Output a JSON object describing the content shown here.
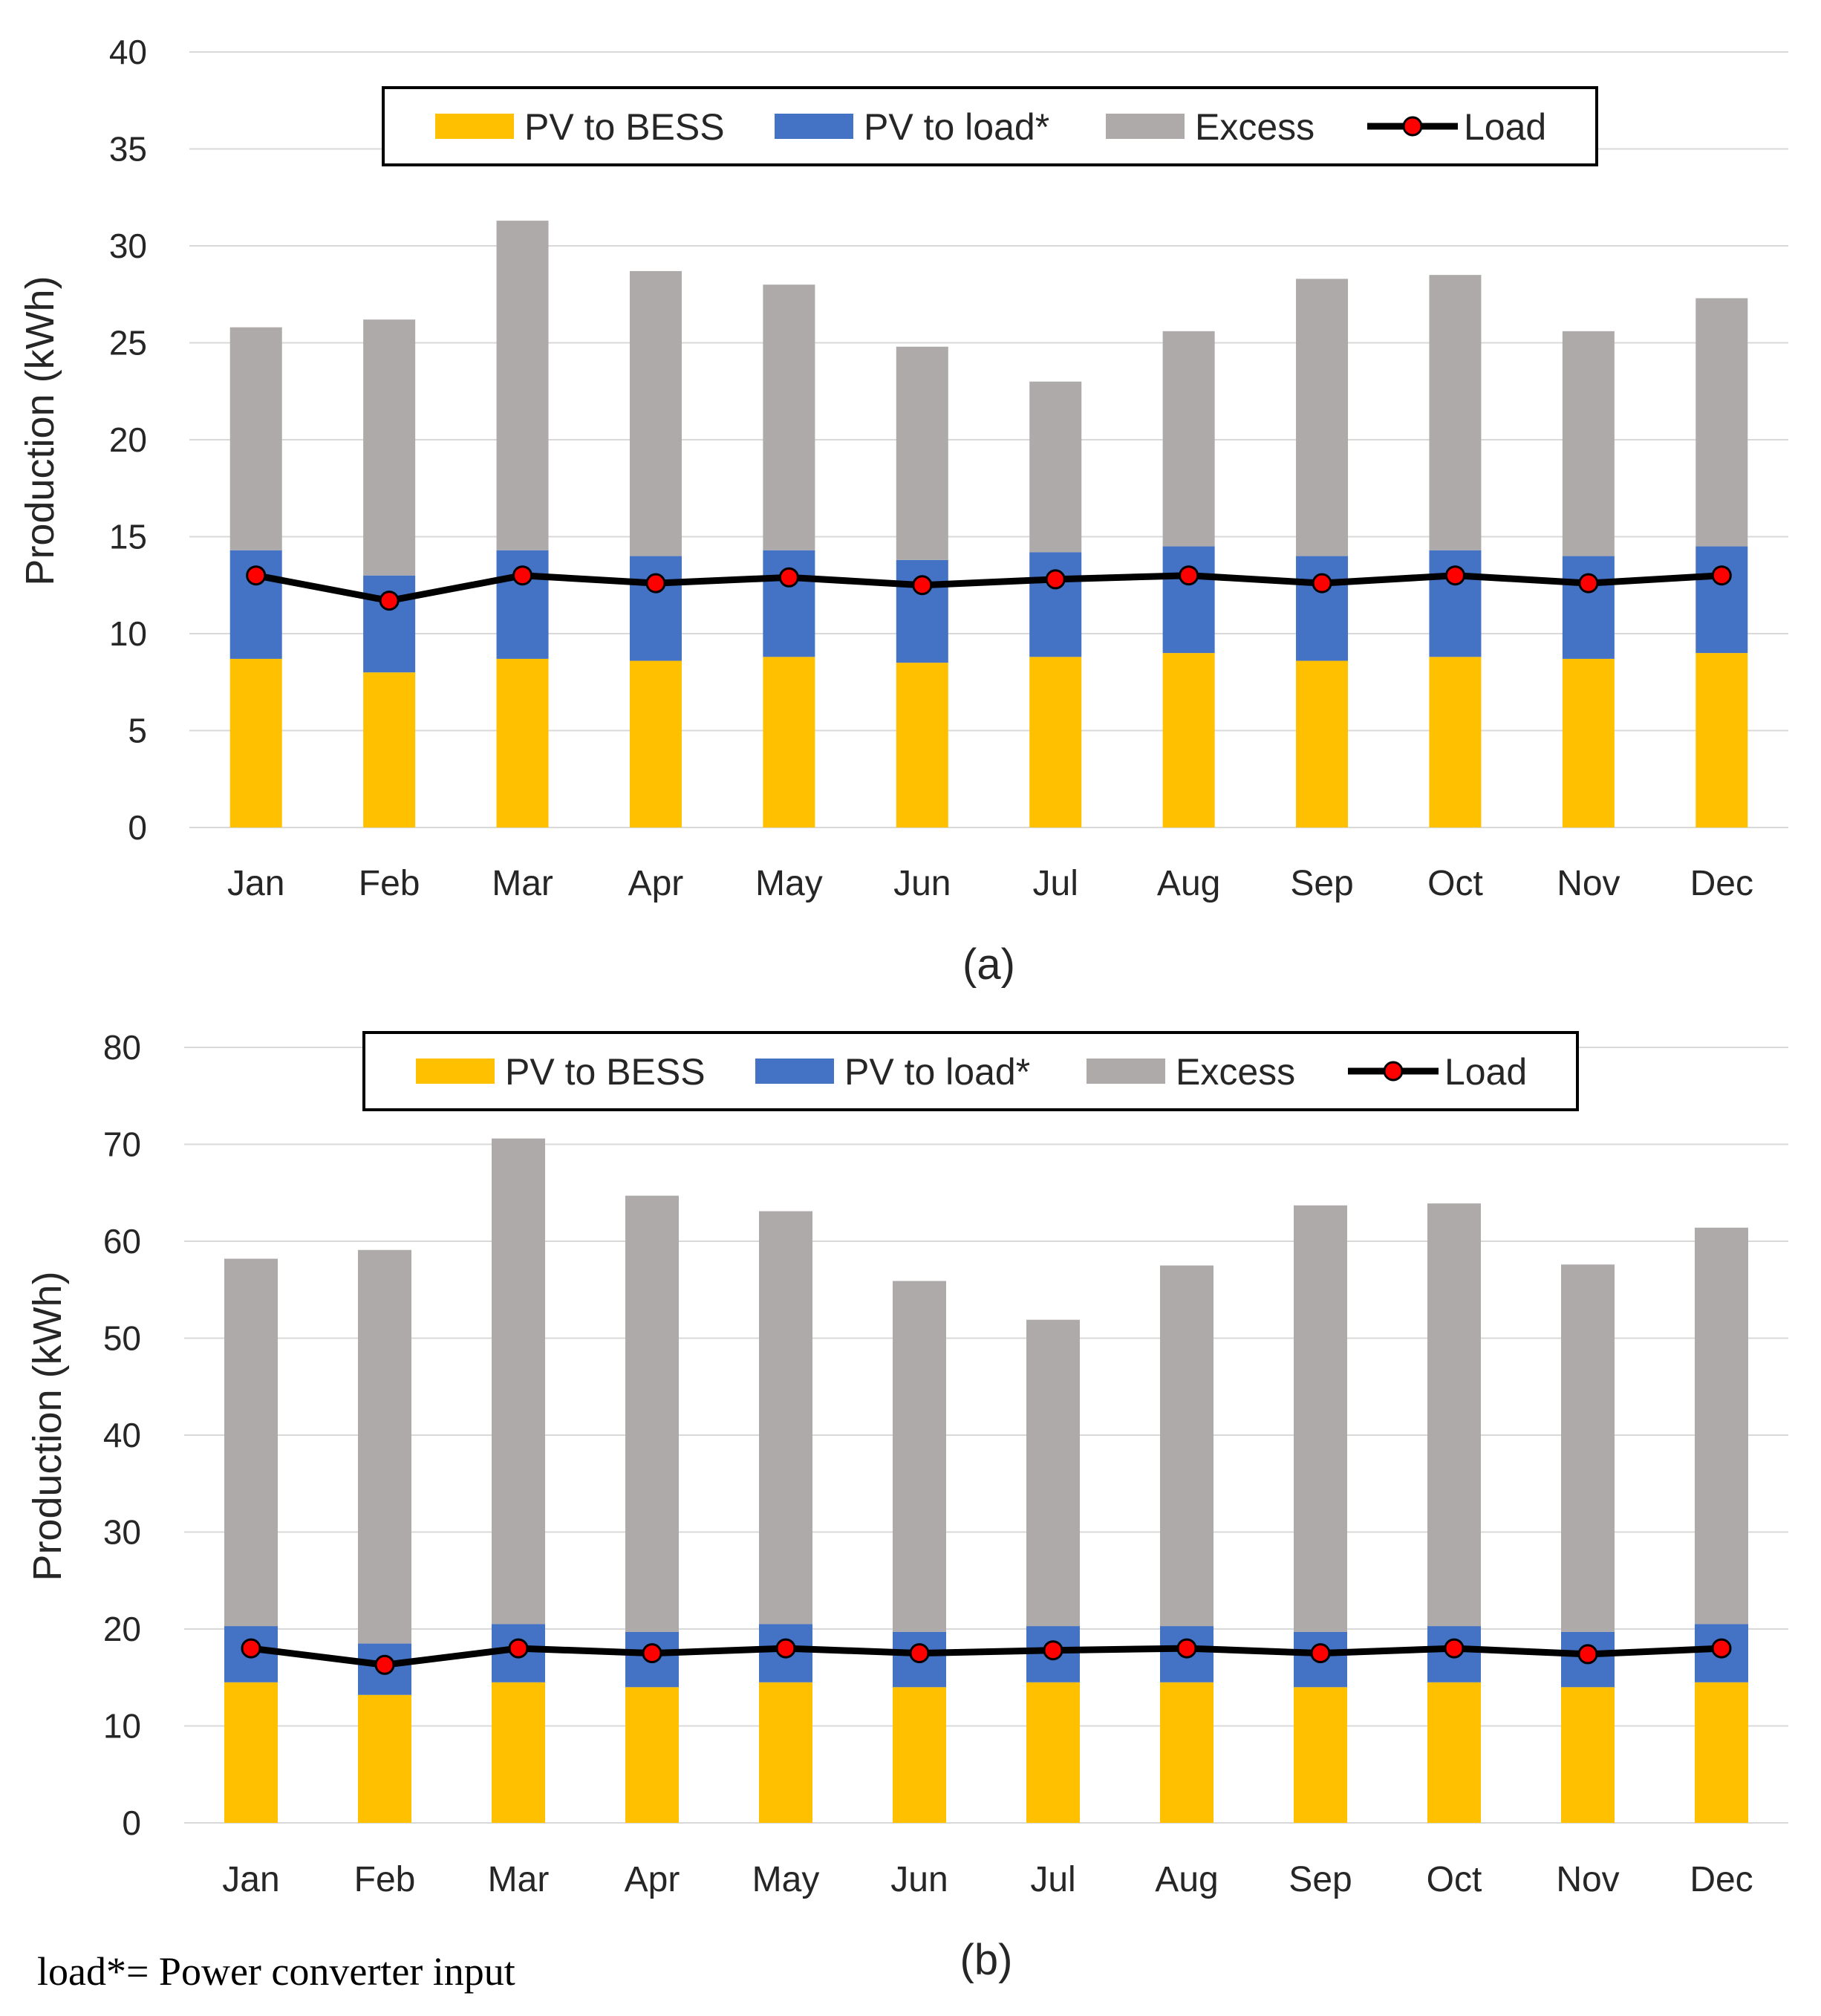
{
  "colors": {
    "pv_to_bess": "#FFC000",
    "pv_to_load": "#4472C4",
    "excess": "#AEAAAA",
    "load_line": "#000000",
    "load_marker": "#FF0000"
  },
  "footnote": "load*= Power converter input",
  "chart_data": [
    {
      "type": "bar",
      "stacked": true,
      "panel_label": "(a)",
      "categories": [
        "Jan",
        "Feb",
        "Mar",
        "Apr",
        "May",
        "Jun",
        "Jul",
        "Aug",
        "Sep",
        "Oct",
        "Nov",
        "Dec"
      ],
      "ylabel": "Production (kWh)",
      "xlabel": "",
      "ylim": [
        0,
        40
      ],
      "yticks": [
        0,
        5,
        10,
        15,
        20,
        25,
        30,
        35,
        40
      ],
      "grid": true,
      "legend_position": "top-center",
      "legend": [
        "PV to BESS",
        "PV to load*",
        "Excess",
        "Load"
      ],
      "series": [
        {
          "name": "PV to BESS",
          "color_key": "pv_to_bess",
          "values": [
            8.7,
            8.0,
            8.7,
            8.6,
            8.8,
            8.5,
            8.8,
            9.0,
            8.6,
            8.8,
            8.7,
            9.0
          ]
        },
        {
          "name": "PV to load*",
          "color_key": "pv_to_load",
          "values": [
            5.6,
            5.0,
            5.6,
            5.4,
            5.5,
            5.3,
            5.4,
            5.5,
            5.4,
            5.5,
            5.3,
            5.5
          ]
        },
        {
          "name": "Excess",
          "color_key": "excess",
          "values": [
            11.5,
            13.2,
            17.0,
            14.7,
            13.7,
            11.0,
            8.8,
            11.1,
            14.3,
            14.2,
            11.6,
            12.8
          ]
        }
      ],
      "line": {
        "name": "Load",
        "values": [
          13.0,
          11.7,
          13.0,
          12.6,
          12.9,
          12.5,
          12.8,
          13.0,
          12.6,
          13.0,
          12.6,
          13.0
        ]
      }
    },
    {
      "type": "bar",
      "stacked": true,
      "panel_label": "(b)",
      "categories": [
        "Jan",
        "Feb",
        "Mar",
        "Apr",
        "May",
        "Jun",
        "Jul",
        "Aug",
        "Sep",
        "Oct",
        "Nov",
        "Dec"
      ],
      "ylabel": "Production (kWh)",
      "xlabel": "",
      "ylim": [
        0,
        80
      ],
      "yticks": [
        0,
        10,
        20,
        30,
        40,
        50,
        60,
        70,
        80
      ],
      "grid": true,
      "legend_position": "top-center",
      "legend": [
        "PV to BESS",
        "PV to load*",
        "Excess",
        "Load"
      ],
      "series": [
        {
          "name": "PV to BESS",
          "color_key": "pv_to_bess",
          "values": [
            14.5,
            13.2,
            14.5,
            14.0,
            14.5,
            14.0,
            14.5,
            14.5,
            14.0,
            14.5,
            14.0,
            14.5
          ]
        },
        {
          "name": "PV to load*",
          "color_key": "pv_to_load",
          "values": [
            5.8,
            5.3,
            6.0,
            5.7,
            6.0,
            5.7,
            5.8,
            5.8,
            5.7,
            5.8,
            5.7,
            6.0
          ]
        },
        {
          "name": "Excess",
          "color_key": "excess",
          "values": [
            37.9,
            40.6,
            50.1,
            45.0,
            42.6,
            36.2,
            31.6,
            37.2,
            44.0,
            43.6,
            37.9,
            40.9
          ]
        }
      ],
      "line": {
        "name": "Load",
        "values": [
          18.0,
          16.3,
          18.0,
          17.5,
          18.0,
          17.5,
          17.8,
          18.0,
          17.5,
          18.0,
          17.4,
          18.0
        ]
      }
    }
  ]
}
